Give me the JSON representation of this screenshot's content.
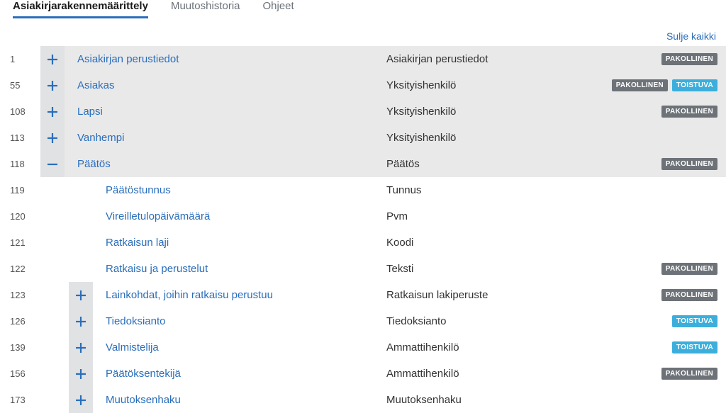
{
  "tabs": {
    "structure": "Asiakirjarakennemäärittely",
    "history": "Muutoshistoria",
    "help": "Ohjeet"
  },
  "actions": {
    "close_all": "Sulje kaikki"
  },
  "badges": {
    "pakollinen": "PAKOLLINEN",
    "toistuva": "TOISTUVA"
  },
  "rows": [
    {
      "line": "1",
      "level": 0,
      "toggle": "plus",
      "shaded": true,
      "label": "Asiakirjan perustiedot",
      "type": "Asiakirjan perustiedot",
      "pakollinen": true,
      "toistuva": false
    },
    {
      "line": "55",
      "level": 0,
      "toggle": "plus",
      "shaded": true,
      "label": "Asiakas",
      "type": "Yksityishenkilö",
      "pakollinen": true,
      "toistuva": true
    },
    {
      "line": "108",
      "level": 0,
      "toggle": "plus",
      "shaded": true,
      "label": "Lapsi",
      "type": "Yksityishenkilö",
      "pakollinen": true,
      "toistuva": false
    },
    {
      "line": "113",
      "level": 0,
      "toggle": "plus",
      "shaded": true,
      "label": "Vanhempi",
      "type": "Yksityishenkilö",
      "pakollinen": false,
      "toistuva": false
    },
    {
      "line": "118",
      "level": 0,
      "toggle": "minus",
      "shaded": true,
      "label": "Päätös",
      "type": "Päätös",
      "pakollinen": true,
      "toistuva": false
    },
    {
      "line": "119",
      "level": 1,
      "toggle": "none",
      "shaded": false,
      "label": "Päätöstunnus",
      "type": "Tunnus",
      "pakollinen": false,
      "toistuva": false
    },
    {
      "line": "120",
      "level": 1,
      "toggle": "none",
      "shaded": false,
      "label": "Vireilletulopäivämäärä",
      "type": "Pvm",
      "pakollinen": false,
      "toistuva": false
    },
    {
      "line": "121",
      "level": 1,
      "toggle": "none",
      "shaded": false,
      "label": "Ratkaisun laji",
      "type": "Koodi",
      "pakollinen": false,
      "toistuva": false
    },
    {
      "line": "122",
      "level": 1,
      "toggle": "none",
      "shaded": false,
      "label": "Ratkaisu ja perustelut",
      "type": "Teksti",
      "pakollinen": true,
      "toistuva": false
    },
    {
      "line": "123",
      "level": 1,
      "toggle": "plus",
      "shaded": false,
      "label": "Lainkohdat, joihin ratkaisu perustuu",
      "type": "Ratkaisun lakiperuste",
      "pakollinen": true,
      "toistuva": false
    },
    {
      "line": "126",
      "level": 1,
      "toggle": "plus",
      "shaded": false,
      "label": "Tiedoksianto",
      "type": "Tiedoksianto",
      "pakollinen": false,
      "toistuva": true
    },
    {
      "line": "139",
      "level": 1,
      "toggle": "plus",
      "shaded": false,
      "label": "Valmistelija",
      "type": "Ammattihenkilö",
      "pakollinen": false,
      "toistuva": true
    },
    {
      "line": "156",
      "level": 1,
      "toggle": "plus",
      "shaded": false,
      "label": "Päätöksentekijä",
      "type": "Ammattihenkilö",
      "pakollinen": true,
      "toistuva": false
    },
    {
      "line": "173",
      "level": 1,
      "toggle": "plus",
      "shaded": false,
      "label": "Muutoksenhaku",
      "type": "Muutoksenhaku",
      "pakollinen": false,
      "toistuva": false
    }
  ]
}
